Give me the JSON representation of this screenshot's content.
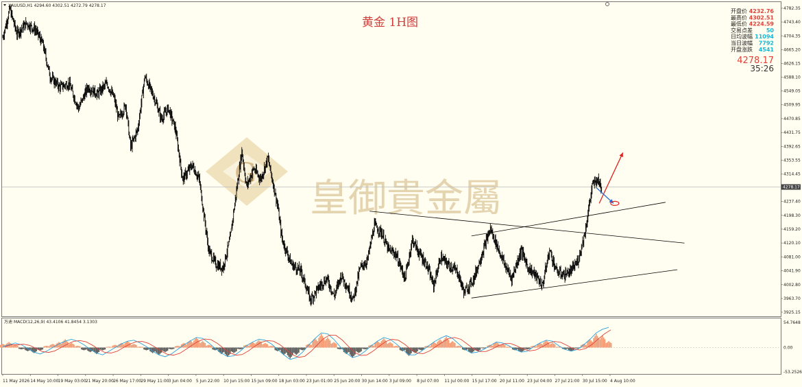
{
  "header": {
    "symbol_info": "XAUUSD,H1  4294.60 4302.51 4272.79 4278.17",
    "macd_label": "MACD(12,26,9) 43.4106 41.8454 3.1303",
    "macd_prefix": "万迪"
  },
  "title": "黄金 1H图",
  "watermark": {
    "text": "皇御貴金屬",
    "logo_letter": "G"
  },
  "stats": [
    {
      "label": "开盘价",
      "value": "4232.76",
      "color": "red"
    },
    {
      "label": "最高价",
      "value": "4302.51",
      "color": "red"
    },
    {
      "label": "最低价",
      "value": "4224.59",
      "color": "red"
    },
    {
      "label": "交易点差",
      "value": "50",
      "color": "cyan"
    },
    {
      "label": "日均波幅",
      "value": "11094",
      "color": "cyan"
    },
    {
      "label": "当日波幅",
      "value": "7792",
      "color": "cyan"
    },
    {
      "label": "开盘涨跌",
      "value": "4541",
      "color": "cyan"
    }
  ],
  "current": {
    "price": "4278.17",
    "timer": "35:26",
    "tag": "4278.17"
  },
  "colors": {
    "background": "#FFFEF0",
    "candle": "#000000",
    "macd_hist": "#F29870",
    "macd_neg": "#555555",
    "macd_line": "#2AA0DC",
    "signal_line": "#E0413A",
    "arrow_red": "#E02020",
    "arrow_blue": "#2A6AD0"
  },
  "chart_data": {
    "type": "candlestick",
    "x_tick_labels": [
      "11 May 2026",
      "14 May 10:00",
      "19 May 03:00",
      "21 May 20:00",
      "26 May 17:00",
      "29 May 11:00",
      "3 Jun 04:00",
      "5 Jun 22:00",
      "10 Jun 15:00",
      "15 Jun 09:00",
      "18 Jun 03:00",
      "23 Jun 01:00",
      "25 Jun 20:00",
      "30 Jun 14:00",
      "3 Jul 09:00",
      "8 Jul 07:00",
      "11 Jul 00:00",
      "15 Jul 17:00",
      "20 Jul 11:00",
      "23 Jul 04:00",
      "27 Jul 21:00",
      "30 Jul 15:00",
      "4 Aug 10:00"
    ],
    "y_tick_labels": [
      "4782.35",
      "4743.40",
      "4704.35",
      "4665.20",
      "4626.15",
      "4588.10",
      "4549.05",
      "4509.95",
      "4470.85",
      "4431.75",
      "4392.65",
      "4353.55",
      "4314.45",
      "4237.40",
      "4198.30",
      "4159.20",
      "4120.10",
      "4081.00",
      "4041.90",
      "4002.80",
      "3963.70",
      "3925.15"
    ],
    "y_range": [
      3925,
      4790
    ],
    "price_path": [
      [
        0,
        4700
      ],
      [
        3,
        4780
      ],
      [
        6,
        4710
      ],
      [
        10,
        4740
      ],
      [
        14,
        4720
      ],
      [
        17,
        4680
      ],
      [
        20,
        4590
      ],
      [
        24,
        4560
      ],
      [
        28,
        4570
      ],
      [
        32,
        4500
      ],
      [
        36,
        4560
      ],
      [
        40,
        4540
      ],
      [
        44,
        4570
      ],
      [
        47,
        4530
      ],
      [
        49,
        4470
      ],
      [
        52,
        4510
      ],
      [
        54,
        4390
      ],
      [
        57,
        4440
      ],
      [
        60,
        4590
      ],
      [
        64,
        4530
      ],
      [
        67,
        4470
      ],
      [
        70,
        4500
      ],
      [
        73,
        4440
      ],
      [
        76,
        4300
      ],
      [
        80,
        4340
      ],
      [
        83,
        4300
      ],
      [
        87,
        4100
      ],
      [
        90,
        4060
      ],
      [
        93,
        4050
      ],
      [
        96,
        4130
      ],
      [
        98,
        4230
      ],
      [
        101,
        4380
      ],
      [
        103,
        4280
      ],
      [
        106,
        4330
      ],
      [
        109,
        4300
      ],
      [
        112,
        4360
      ],
      [
        116,
        4230
      ],
      [
        118,
        4130
      ],
      [
        122,
        4060
      ],
      [
        126,
        4040
      ],
      [
        130,
        3960
      ],
      [
        134,
        4000
      ],
      [
        137,
        4020
      ],
      [
        140,
        3970
      ],
      [
        143,
        4030
      ],
      [
        146,
        3990
      ],
      [
        148,
        3960
      ],
      [
        151,
        4050
      ],
      [
        154,
        4070
      ],
      [
        157,
        4170
      ],
      [
        160,
        4150
      ],
      [
        163,
        4100
      ],
      [
        166,
        4090
      ],
      [
        170,
        4020
      ],
      [
        173,
        4130
      ],
      [
        176,
        4090
      ],
      [
        179,
        4060
      ],
      [
        182,
        4000
      ],
      [
        185,
        4080
      ],
      [
        188,
        4060
      ],
      [
        192,
        4040
      ],
      [
        195,
        3980
      ],
      [
        199,
        4020
      ],
      [
        202,
        4080
      ],
      [
        206,
        4160
      ],
      [
        209,
        4110
      ],
      [
        212,
        4060
      ],
      [
        215,
        4020
      ],
      [
        219,
        4100
      ],
      [
        222,
        4050
      ],
      [
        225,
        4030
      ],
      [
        228,
        4000
      ],
      [
        231,
        4100
      ],
      [
        234,
        4040
      ],
      [
        237,
        4030
      ],
      [
        240,
        4040
      ],
      [
        243,
        4070
      ],
      [
        246,
        4150
      ],
      [
        249,
        4280
      ],
      [
        251,
        4300
      ],
      [
        253,
        4278
      ]
    ],
    "price_total_bars": 256,
    "trendlines": [
      {
        "from": [
          155,
          4210
        ],
        "to": [
          288,
          4120
        ]
      },
      {
        "from": [
          198,
          4140
        ],
        "to": [
          280,
          4235
        ]
      },
      {
        "from": [
          198,
          3965
        ],
        "to": [
          285,
          4045
        ]
      }
    ],
    "arrows": [
      {
        "color": "red",
        "from": [
          252,
          4232
        ],
        "to": [
          262,
          4375
        ]
      },
      {
        "color": "blue",
        "from": [
          251,
          4275
        ],
        "to": [
          258,
          4232
        ]
      }
    ],
    "macd": {
      "y_tick_labels": [
        "54.7648",
        "0.00",
        "-53.2526"
      ],
      "y_range": [
        -53.25,
        54.76
      ],
      "hist": [
        8,
        12,
        6,
        -4,
        -8,
        -12,
        -6,
        4,
        8,
        12,
        18,
        10,
        4,
        -6,
        -10,
        -14,
        -6,
        2,
        6,
        10,
        14,
        8,
        2,
        -6,
        -12,
        -16,
        -10,
        -4,
        4,
        10,
        16,
        22,
        14,
        6,
        -6,
        -14,
        -20,
        -12,
        -4,
        6,
        12,
        16,
        10,
        4,
        -8,
        -16,
        -24,
        -16,
        -6,
        8,
        20,
        30,
        22,
        12,
        -4,
        -14,
        -22,
        -12,
        -4,
        6,
        14,
        20,
        12,
        4,
        -8,
        -18,
        -12,
        -6,
        4,
        12,
        18,
        24,
        14,
        4,
        -6,
        -12,
        -8,
        -2,
        6,
        12,
        8,
        2,
        -6,
        -10,
        -4,
        4,
        10,
        16,
        10,
        2,
        -4,
        -8,
        -2,
        8,
        18,
        30,
        26,
        14
      ],
      "line": [
        2,
        6,
        10,
        6,
        -2,
        -10,
        -14,
        -8,
        0,
        8,
        14,
        18,
        14,
        6,
        -4,
        -12,
        -16,
        -8,
        0,
        8,
        14,
        16,
        10,
        2,
        -8,
        -16,
        -20,
        -14,
        -4,
        6,
        14,
        22,
        20,
        10,
        -2,
        -12,
        -20,
        -18,
        -8,
        4,
        12,
        18,
        16,
        8,
        -4,
        -16,
        -26,
        -22,
        -10,
        6,
        20,
        32,
        30,
        18,
        2,
        -12,
        -22,
        -18,
        -8,
        4,
        14,
        22,
        18,
        8,
        -4,
        -16,
        -16,
        -8,
        2,
        12,
        20,
        26,
        20,
        8,
        -4,
        -12,
        -10,
        -4,
        4,
        12,
        10,
        4,
        -4,
        -10,
        -8,
        2,
        10,
        16,
        14,
        4,
        -4,
        -8,
        -4,
        6,
        18,
        32,
        40,
        44
      ]
    }
  }
}
